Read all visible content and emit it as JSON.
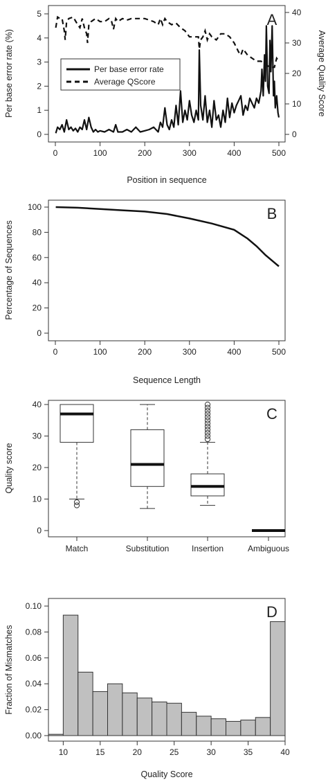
{
  "chart_data": [
    {
      "panel": "A",
      "type": "line",
      "xlabel": "Position in sequence",
      "ylabel": "Per base error rate (%)",
      "ylabel_right": "Average Quality Score",
      "xlim": [
        0,
        500
      ],
      "ylim": [
        0,
        5
      ],
      "ylim_right": [
        0,
        40
      ],
      "x_ticks": [
        0,
        100,
        200,
        300,
        400,
        500
      ],
      "y_ticks": [
        0,
        1,
        2,
        3,
        4,
        5
      ],
      "y_ticks_right": [
        0,
        10,
        20,
        30,
        40
      ],
      "legend": {
        "position": "top-left",
        "entries": [
          "Per base error rate",
          "Average QScore"
        ]
      },
      "series": [
        {
          "name": "Per base error rate",
          "axis": "left",
          "style": "solid",
          "x": [
            1,
            5,
            10,
            15,
            20,
            25,
            30,
            35,
            40,
            45,
            50,
            55,
            60,
            65,
            70,
            75,
            80,
            85,
            90,
            95,
            100,
            110,
            120,
            130,
            135,
            140,
            150,
            160,
            170,
            180,
            190,
            200,
            210,
            220,
            230,
            235,
            240,
            245,
            250,
            255,
            260,
            265,
            270,
            275,
            280,
            285,
            290,
            295,
            300,
            305,
            310,
            315,
            320,
            322,
            325,
            330,
            335,
            340,
            345,
            350,
            355,
            360,
            365,
            370,
            375,
            380,
            385,
            390,
            395,
            400,
            405,
            410,
            415,
            420,
            425,
            430,
            435,
            440,
            445,
            450,
            455,
            460,
            462,
            465,
            468,
            470,
            472,
            475,
            478,
            480,
            482,
            485,
            488,
            490,
            492,
            495,
            498,
            500
          ],
          "y": [
            0.05,
            0.3,
            0.2,
            0.4,
            0.1,
            0.6,
            0.2,
            0.3,
            0.15,
            0.25,
            0.1,
            0.3,
            0.2,
            0.6,
            0.2,
            0.7,
            0.3,
            0.1,
            0.2,
            0.1,
            0.15,
            0.1,
            0.2,
            0.1,
            0.4,
            0.1,
            0.1,
            0.2,
            0.1,
            0.3,
            0.1,
            0.15,
            0.2,
            0.3,
            0.1,
            0.5,
            0.3,
            1.1,
            0.4,
            0.2,
            0.6,
            0.3,
            1.2,
            0.4,
            1.8,
            0.5,
            1.0,
            0.6,
            1.4,
            0.8,
            0.5,
            1.0,
            0.6,
            3.5,
            1.2,
            0.6,
            1.6,
            0.5,
            1.0,
            0.3,
            1.4,
            0.6,
            0.8,
            0.3,
            1.0,
            0.5,
            1.5,
            0.7,
            1.3,
            0.9,
            1.2,
            1.4,
            1.6,
            0.8,
            1.2,
            1.0,
            1.5,
            1.3,
            1.1,
            1.5,
            1.3,
            1.8,
            2.7,
            1.6,
            3.3,
            2.2,
            4.5,
            2.0,
            1.7,
            3.9,
            2.6,
            4.5,
            1.6,
            2.2,
            1.1,
            1.6,
            0.9,
            0.7
          ]
        },
        {
          "name": "Average QScore",
          "axis": "right",
          "style": "dashed",
          "x": [
            1,
            5,
            10,
            15,
            20,
            22,
            25,
            30,
            40,
            50,
            55,
            60,
            65,
            70,
            72,
            75,
            80,
            90,
            100,
            110,
            120,
            125,
            130,
            135,
            140,
            150,
            160,
            170,
            180,
            200,
            210,
            220,
            230,
            235,
            240,
            245,
            250,
            260,
            270,
            280,
            290,
            300,
            310,
            320,
            322,
            325,
            330,
            335,
            340,
            345,
            350,
            360,
            370,
            380,
            390,
            400,
            410,
            415,
            420,
            430,
            440,
            450,
            460,
            470,
            480,
            490,
            495,
            500
          ],
          "y": [
            35,
            38.5,
            38,
            38,
            34,
            31,
            37,
            38,
            38.5,
            36,
            35,
            38,
            35,
            33,
            30,
            36,
            37,
            38,
            37,
            37,
            38,
            37.5,
            34.5,
            38,
            37,
            38,
            37.5,
            38,
            38,
            38,
            37.5,
            37,
            36,
            38,
            36,
            38,
            37,
            36,
            36.5,
            35,
            34,
            32,
            32,
            32,
            28,
            31,
            32,
            34,
            31,
            33,
            32,
            31,
            33,
            33,
            32,
            30,
            27,
            26,
            28,
            26,
            25,
            24,
            24,
            23,
            22,
            22,
            25,
            24
          ]
        }
      ]
    },
    {
      "panel": "B",
      "type": "line",
      "xlabel": "Sequence Length",
      "ylabel": "Percentage of Sequences",
      "xlim": [
        0,
        500
      ],
      "ylim": [
        0,
        100
      ],
      "x_ticks": [
        0,
        100,
        200,
        300,
        400,
        500
      ],
      "y_ticks": [
        0,
        20,
        40,
        60,
        80,
        100
      ],
      "series": [
        {
          "x": [
            1,
            50,
            100,
            150,
            200,
            250,
            300,
            350,
            400,
            430,
            450,
            470,
            490,
            500
          ],
          "y": [
            100,
            99.5,
            98.5,
            97.5,
            96.5,
            94.5,
            91,
            87,
            82,
            75,
            69,
            62,
            56,
            53
          ]
        }
      ]
    },
    {
      "panel": "C",
      "type": "box",
      "ylabel": "Quality score",
      "ylim": [
        0,
        40
      ],
      "y_ticks": [
        0,
        10,
        20,
        30,
        40
      ],
      "categories": [
        "Match",
        "Substitution",
        "Insertion",
        "Ambiguous"
      ],
      "boxes": [
        {
          "whisker_low": 10,
          "q1": 28,
          "median": 37,
          "q3": 40,
          "whisker_high": 40,
          "outliers": [
            8,
            9
          ]
        },
        {
          "whisker_low": 7,
          "q1": 14,
          "median": 21,
          "q3": 32,
          "whisker_high": 40,
          "outliers": []
        },
        {
          "whisker_low": 8,
          "q1": 11,
          "median": 14,
          "q3": 18,
          "whisker_high": 28,
          "outliers": [
            29,
            30,
            31,
            32,
            33,
            34,
            35,
            36,
            37,
            38,
            39,
            40
          ]
        },
        {
          "whisker_low": 0,
          "q1": 0,
          "median": 0,
          "q3": 0,
          "whisker_high": 0,
          "outliers": []
        }
      ]
    },
    {
      "panel": "D",
      "type": "bar",
      "xlabel": "Quality Score",
      "ylabel": "Fraction of Mismatches",
      "xlim": [
        8,
        40
      ],
      "ylim": [
        0,
        0.1
      ],
      "x_ticks": [
        10,
        15,
        20,
        25,
        30,
        35,
        40
      ],
      "y_ticks": [
        "0.00",
        "0.02",
        "0.04",
        "0.06",
        "0.08",
        "0.10"
      ],
      "bin_edges": [
        8,
        10,
        12,
        14,
        16,
        18,
        20,
        22,
        24,
        26,
        28,
        30,
        32,
        34,
        36,
        38,
        40
      ],
      "values": [
        0.001,
        0.093,
        0.049,
        0.034,
        0.04,
        0.033,
        0.029,
        0.026,
        0.025,
        0.018,
        0.015,
        0.013,
        0.011,
        0.012,
        0.014,
        0.088
      ],
      "bar_color": "#c0c0c0"
    }
  ]
}
